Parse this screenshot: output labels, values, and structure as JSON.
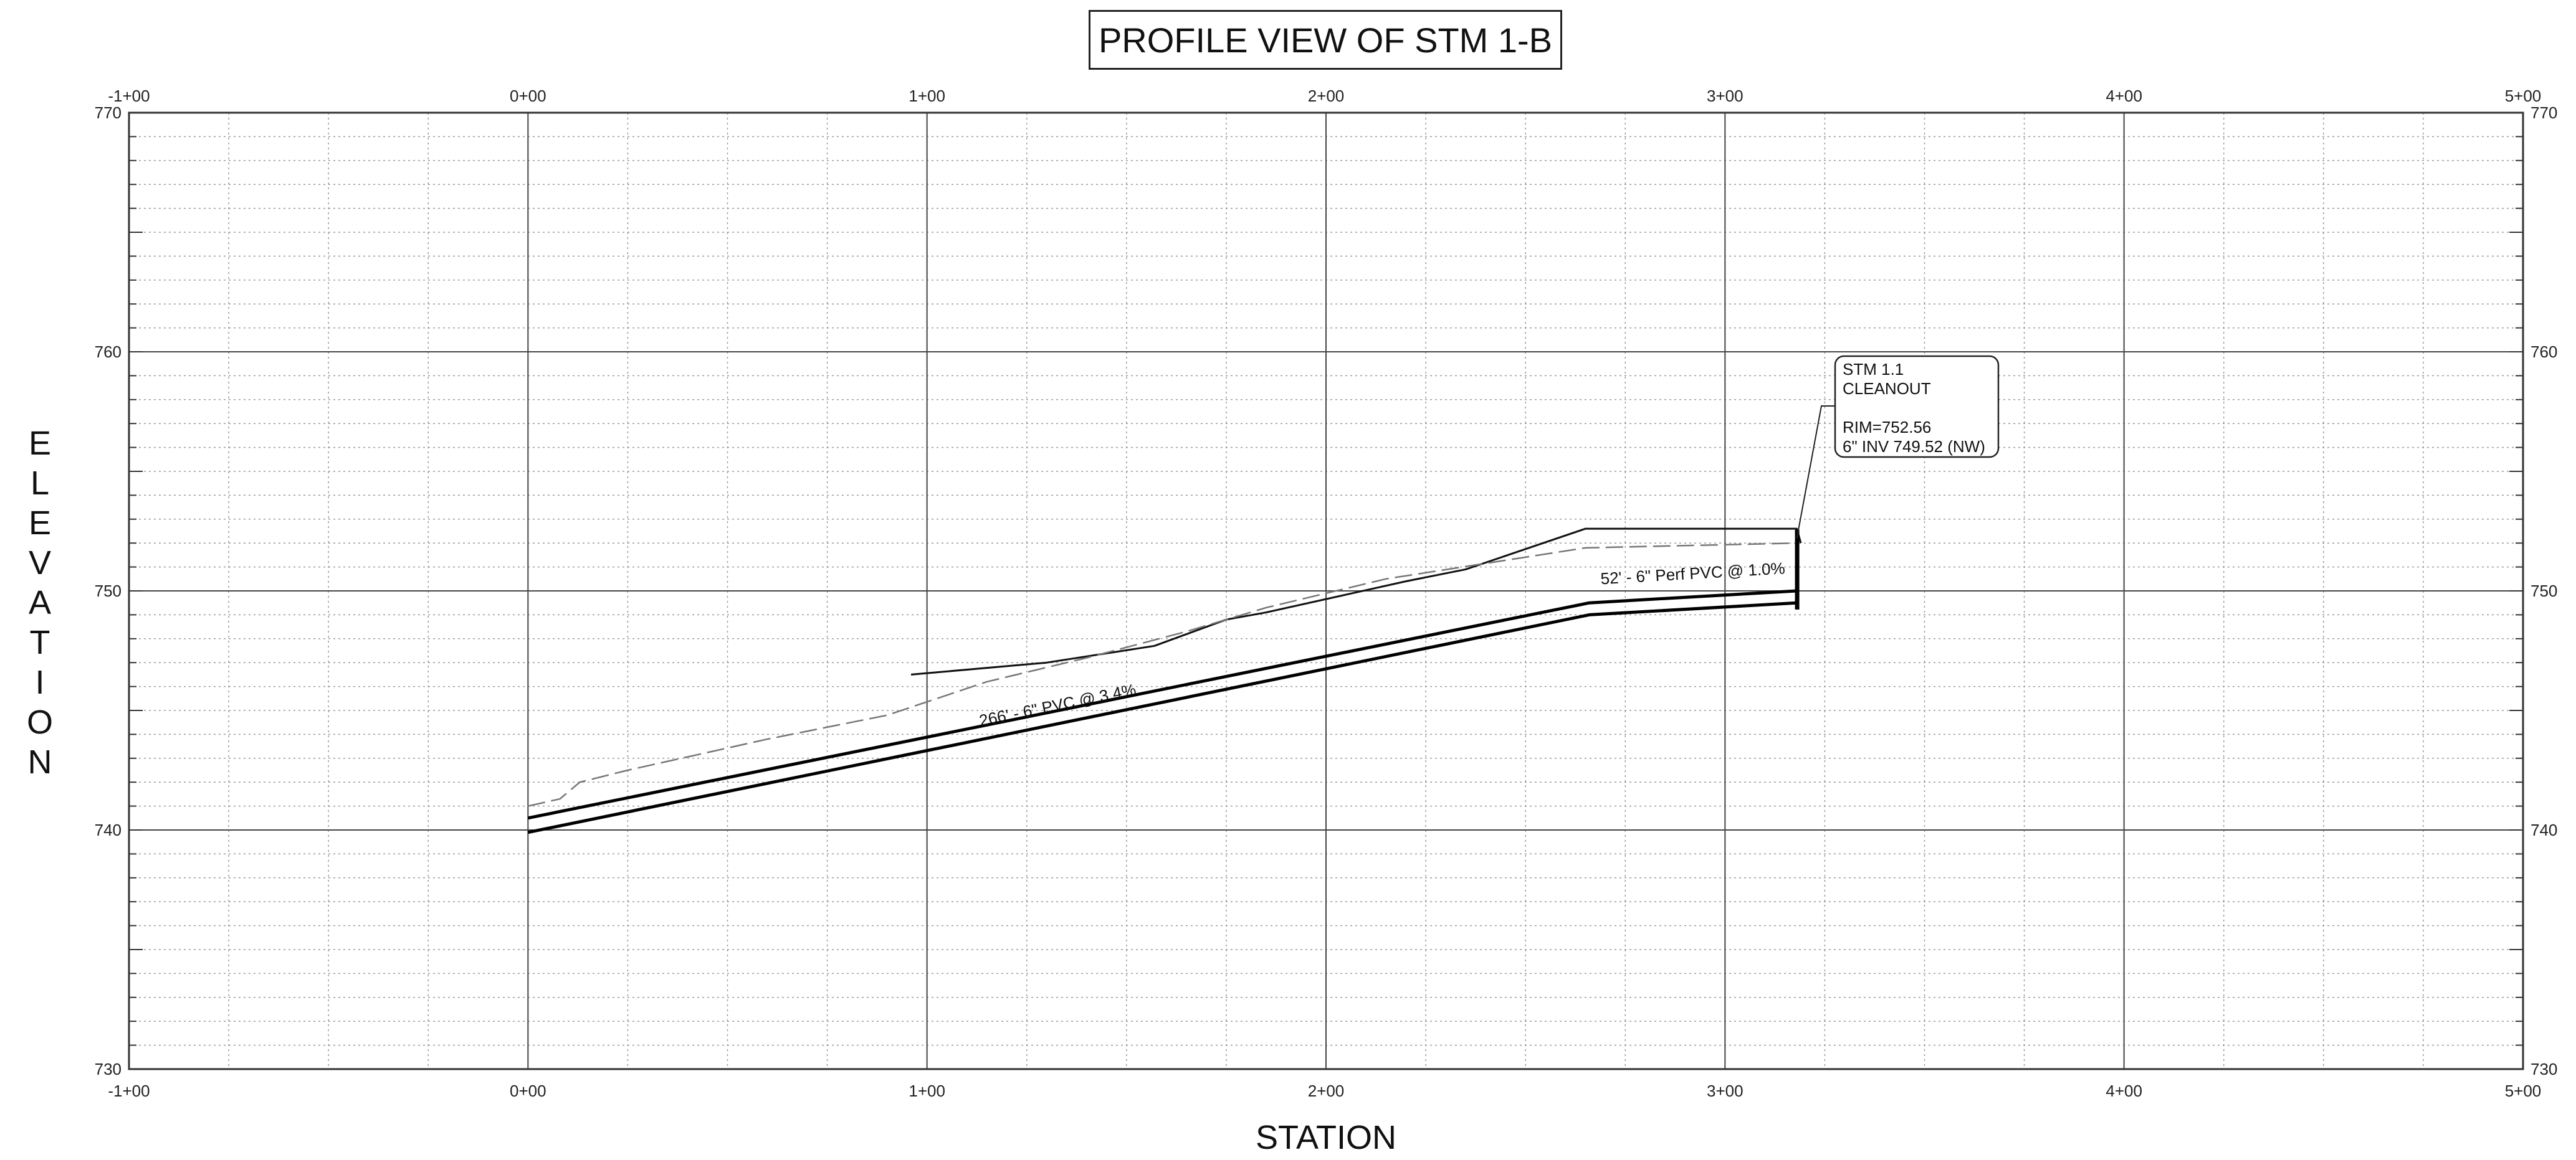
{
  "title": "PROFILE VIEW OF  STM 1-B",
  "y_axis_title": "ELEVATION",
  "x_axis_title": "STATION",
  "chart_data": {
    "type": "line",
    "title": "PROFILE VIEW OF  STM 1-B",
    "xlabel": "STATION",
    "ylabel": "ELEVATION",
    "xlim": [
      -100,
      500
    ],
    "ylim": [
      730,
      770
    ],
    "grid": true,
    "x_tick_labels": [
      "-1+00",
      "0+00",
      "1+00",
      "2+00",
      "3+00",
      "4+00",
      "5+00"
    ],
    "x_tick_values": [
      -100,
      0,
      100,
      200,
      300,
      400,
      500
    ],
    "y_tick_labels": [
      "730",
      "740",
      "750",
      "760",
      "770"
    ],
    "y_tick_values": [
      730,
      740,
      750,
      760,
      770
    ],
    "series": [
      {
        "style": "solid-thin",
        "points": [
          [
            96,
            746.5
          ],
          [
            130,
            747.0
          ],
          [
            157,
            747.7
          ],
          [
            175,
            748.8
          ],
          [
            185,
            749.1
          ],
          [
            220,
            750.4
          ],
          [
            235,
            750.9
          ],
          [
            265,
            752.6
          ],
          [
            318,
            752.6
          ],
          [
            319,
            752.0
          ]
        ]
      },
      {
        "style": "dashed-grey",
        "points": [
          [
            0,
            741.0
          ],
          [
            8,
            741.3
          ],
          [
            13,
            742.0
          ],
          [
            25,
            742.5
          ],
          [
            60,
            743.8
          ],
          [
            90,
            744.8
          ],
          [
            115,
            746.2
          ],
          [
            140,
            747.2
          ],
          [
            165,
            748.3
          ],
          [
            185,
            749.3
          ],
          [
            215,
            750.5
          ],
          [
            265,
            751.8
          ],
          [
            318,
            752.0
          ]
        ]
      },
      {
        "style": "pipe-top",
        "points": [
          [
            0,
            740.5
          ],
          [
            266,
            749.5
          ],
          [
            318,
            750.0
          ]
        ]
      },
      {
        "style": "pipe-bottom",
        "points": [
          [
            0,
            739.9
          ],
          [
            266,
            749.0
          ],
          [
            318,
            749.5
          ]
        ]
      }
    ],
    "structure": {
      "station": 318,
      "elev_top": 752.56,
      "elev_bottom": 749.52
    },
    "annotations": [
      {
        "text": "266' - 6\" PVC @ 3.4%",
        "x": 133,
        "y": 745.0
      },
      {
        "text": "52' - 6\" Perf PVC @ 1.0%",
        "x": 292,
        "y": 750.5
      }
    ],
    "callout": {
      "lines": [
        "STM 1.1",
        "CLEANOUT",
        "",
        "RIM=752.56",
        "6\" INV 749.52 (NW)"
      ],
      "leader_from": [
        318,
        752.2
      ]
    }
  }
}
